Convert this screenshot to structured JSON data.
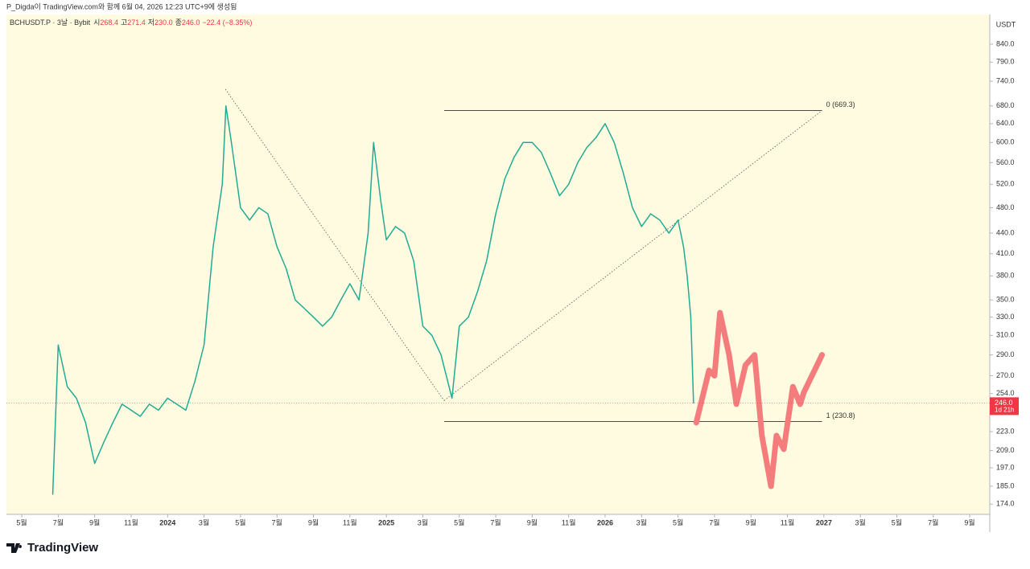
{
  "header": "P_Digda이 TradingView.com와 함께 6월 04, 2026 12:23 UTC+9에 생성됨",
  "legend": {
    "symbol": "BCHUSDT.P · 3날 · Bybit",
    "open_label": "시",
    "open": "268.4",
    "high_label": "고",
    "high": "271.4",
    "low_label": "저",
    "low": "230.0",
    "close_label": "종",
    "close": "246.0",
    "change": "−22.4 (−8.35%)"
  },
  "currency": "USDT",
  "brand": "TradingView",
  "chart_data": {
    "type": "line",
    "log_scale": true,
    "ylim": [
      168,
      930
    ],
    "xlim": [
      -0.84,
      53.1
    ],
    "yticks": [
      {
        "value": 840,
        "label": "840.0"
      },
      {
        "value": 790,
        "label": "790.0"
      },
      {
        "value": 740,
        "label": "740.0"
      },
      {
        "value": 680,
        "label": "680.0"
      },
      {
        "value": 640,
        "label": "640.0"
      },
      {
        "value": 600,
        "label": "600.0"
      },
      {
        "value": 560,
        "label": "560.0"
      },
      {
        "value": 520,
        "label": "520.0"
      },
      {
        "value": 480,
        "label": "480.0"
      },
      {
        "value": 440,
        "label": "440.0"
      },
      {
        "value": 410,
        "label": "410.0"
      },
      {
        "value": 380,
        "label": "380.0"
      },
      {
        "value": 350,
        "label": "350.0"
      },
      {
        "value": 330,
        "label": "330.0"
      },
      {
        "value": 310,
        "label": "310.0"
      },
      {
        "value": 290,
        "label": "290.0"
      },
      {
        "value": 270,
        "label": "270.0"
      },
      {
        "value": 254,
        "label": "254.0"
      },
      {
        "value": 223,
        "label": "223.0"
      },
      {
        "value": 209,
        "label": "209.0"
      },
      {
        "value": 197,
        "label": "197.0"
      },
      {
        "value": 185,
        "label": "185.0"
      },
      {
        "value": 174,
        "label": "174.0"
      }
    ],
    "xticks": [
      {
        "value": 0,
        "label": "5월"
      },
      {
        "value": 2,
        "label": "7월"
      },
      {
        "value": 4,
        "label": "9월"
      },
      {
        "value": 6,
        "label": "11월"
      },
      {
        "value": 8,
        "label": "2024"
      },
      {
        "value": 10,
        "label": "3월"
      },
      {
        "value": 12,
        "label": "5월"
      },
      {
        "value": 14,
        "label": "7월"
      },
      {
        "value": 16,
        "label": "9월"
      },
      {
        "value": 18,
        "label": "11월"
      },
      {
        "value": 20,
        "label": "2025"
      },
      {
        "value": 22,
        "label": "3월"
      },
      {
        "value": 24,
        "label": "5월"
      },
      {
        "value": 26,
        "label": "7월"
      },
      {
        "value": 28,
        "label": "9월"
      },
      {
        "value": 30,
        "label": "11월"
      },
      {
        "value": 32,
        "label": "2026"
      },
      {
        "value": 34,
        "label": "3월"
      },
      {
        "value": 36,
        "label": "5월"
      },
      {
        "value": 38,
        "label": "7월"
      },
      {
        "value": 40,
        "label": "9월"
      },
      {
        "value": 42,
        "label": "11월"
      },
      {
        "value": 44,
        "label": "2027"
      },
      {
        "value": 46,
        "label": "3월"
      },
      {
        "value": 48,
        "label": "5월"
      },
      {
        "value": 50,
        "label": "7월"
      },
      {
        "value": 52,
        "label": "9월"
      }
    ],
    "series": [
      {
        "color": "#22ab94",
        "x": [
          1.7,
          2.0,
          2.5,
          3.0,
          3.5,
          4.0,
          4.5,
          5.0,
          5.5,
          6.0,
          6.5,
          7.0,
          7.5,
          8.0,
          8.5,
          9.0,
          9.5,
          10.0,
          10.5,
          11.0,
          11.2,
          11.5,
          12.0,
          12.5,
          13.0,
          13.5,
          14.0,
          14.5,
          15.0,
          15.5,
          16.0,
          16.5,
          17.0,
          17.5,
          18.0,
          18.5,
          19.0,
          19.3,
          19.7,
          20.0,
          20.5,
          21.0,
          21.5,
          22.0,
          22.5,
          23.0,
          23.6,
          24.0,
          24.5,
          25.0,
          25.5,
          26.0,
          26.5,
          27.0,
          27.5,
          28.0,
          28.5,
          29.0,
          29.5,
          30.0,
          30.5,
          31.0,
          31.5,
          32.0,
          32.5,
          33.0,
          33.5,
          34.0,
          34.5,
          35.0,
          35.5,
          36.0,
          36.3,
          36.5,
          36.7,
          36.85
        ],
        "values": [
          180,
          300,
          260,
          250,
          230,
          200,
          215,
          230,
          245,
          240,
          235,
          245,
          240,
          250,
          245,
          240,
          265,
          300,
          420,
          520,
          680,
          600,
          480,
          460,
          480,
          470,
          420,
          390,
          350,
          340,
          330,
          320,
          330,
          350,
          370,
          350,
          440,
          600,
          490,
          430,
          450,
          440,
          400,
          320,
          310,
          290,
          250,
          320,
          330,
          360,
          400,
          470,
          530,
          570,
          600,
          600,
          580,
          540,
          500,
          520,
          560,
          590,
          610,
          640,
          600,
          540,
          480,
          450,
          470,
          460,
          440,
          460,
          420,
          380,
          330,
          246
        ]
      },
      {
        "color": "#f47c7c",
        "x": [
          37.0,
          37.7,
          38.0,
          38.3,
          38.8,
          39.2,
          39.7,
          40.2,
          40.6,
          41.1,
          41.4,
          41.8,
          42.3,
          42.7,
          42.9,
          43.9
        ],
        "values": [
          230,
          275,
          270,
          335,
          290,
          245,
          280,
          290,
          220,
          185,
          220,
          210,
          260,
          245,
          255,
          290
        ]
      }
    ],
    "annotations": [
      {
        "label": "0 (669.3)",
        "value": 669.3,
        "x": [
          23.17,
          43.9
        ]
      },
      {
        "label": "1 (230.8)",
        "value": 230.8,
        "x": [
          23.17,
          43.9
        ]
      }
    ],
    "trendlines": [
      {
        "x": [
          11.17,
          23.17
        ],
        "values": [
          720,
          248
        ]
      },
      {
        "x": [
          23.17,
          43.9
        ],
        "values": [
          248,
          669.3
        ]
      }
    ],
    "last_price": {
      "value": 246.0,
      "label": "246.0",
      "countdown": "1d 21h"
    }
  }
}
